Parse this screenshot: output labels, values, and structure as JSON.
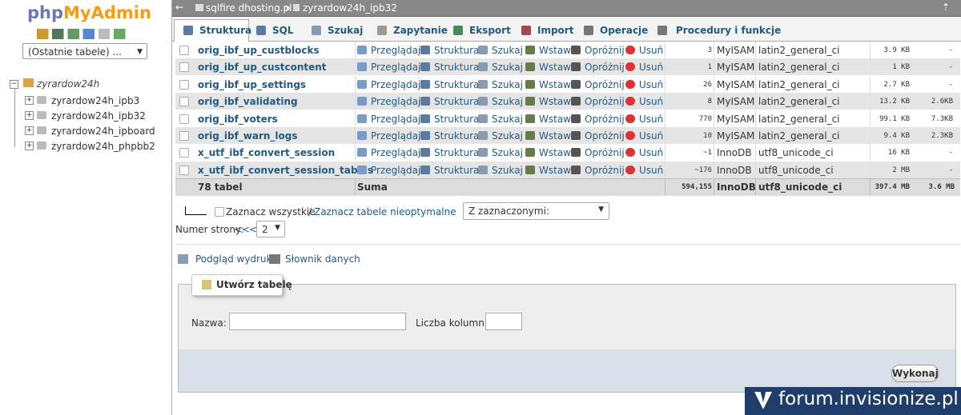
{
  "sidebar": {
    "logo_php": "php",
    "logo_myadmin": "MyAdmin",
    "recent": "(Ostatnie tabele) ...",
    "tree": {
      "root": "zyrardow24h",
      "children": [
        "zyrardow24h_ipb3",
        "zyrardow24h_ipb32",
        "zyrardow24h_ipboard",
        "zyrardow24h_phpbb2"
      ]
    }
  },
  "breadcrumb": {
    "server": "sqlfire dhosting.pl",
    "separator": "»",
    "database": "zyrardow24h_ipb32"
  },
  "tabs": [
    "Struktura",
    "SQL",
    "Szukaj",
    "Zapytanie",
    "Eksport",
    "Import",
    "Operacje",
    "Procedury i funkcje"
  ],
  "table": {
    "actions": [
      "Przeglądaj",
      "Struktura",
      "Szukaj",
      "Wstaw",
      "Opróżnij",
      "Usuń"
    ],
    "rows": [
      [
        "orig_ibf_up_custblocks",
        "3",
        "MyISAM",
        "latin2_general_ci",
        "3.9 KB",
        "-"
      ],
      [
        "orig_ibf_up_custcontent",
        "1",
        "MyISAM",
        "latin2_general_ci",
        "1 KB",
        "-"
      ],
      [
        "orig_ibf_up_settings",
        "26",
        "MyISAM",
        "latin2_general_ci",
        "2.7 KB",
        "-"
      ],
      [
        "orig_ibf_validating",
        "8",
        "MyISAM",
        "latin2_general_ci",
        "13.2 KB",
        "2.6KB"
      ],
      [
        "orig_ibf_voters",
        "770",
        "MyISAM",
        "latin2_general_ci",
        "99.1 KB",
        "7.3KB"
      ],
      [
        "orig_ibf_warn_logs",
        "10",
        "MyISAM",
        "latin2_general_ci",
        "9.4 KB",
        "2.3KB"
      ],
      [
        "x_utf_ibf_convert_session",
        "~1",
        "InnoDB",
        "utf8_unicode_ci",
        "16 KB",
        "-"
      ],
      [
        "x_utf_ibf_convert_session_tables",
        "~176",
        "InnoDB",
        "utf8_unicode_ci",
        "2 MB",
        "-"
      ]
    ],
    "footer": [
      "78 tabel",
      "Suma",
      "594,155",
      "InnoDB",
      "utf8_unicode_ci",
      "397.4 MB",
      "3.6 MB"
    ]
  },
  "selection": {
    "check_all": "Zaznacz wszystkie",
    "slash": "/",
    "check_overhead": "Zaznacz tabele nieoptymalne",
    "with_selected": "Z zaznaczonymi:"
  },
  "pagination": {
    "label": "Numer strony:",
    "first": "<<",
    "prev": "<",
    "page": "2"
  },
  "links": {
    "print": "Podgląd wydruku",
    "dictionary": "Słownik danych"
  },
  "create_table": {
    "legend": "Utwórz tabelę",
    "name_label": "Nazwa:",
    "columns_label": "Liczba kolumn:",
    "submit": "Wykonaj"
  },
  "watermark": "forum.invisionize.pl"
}
